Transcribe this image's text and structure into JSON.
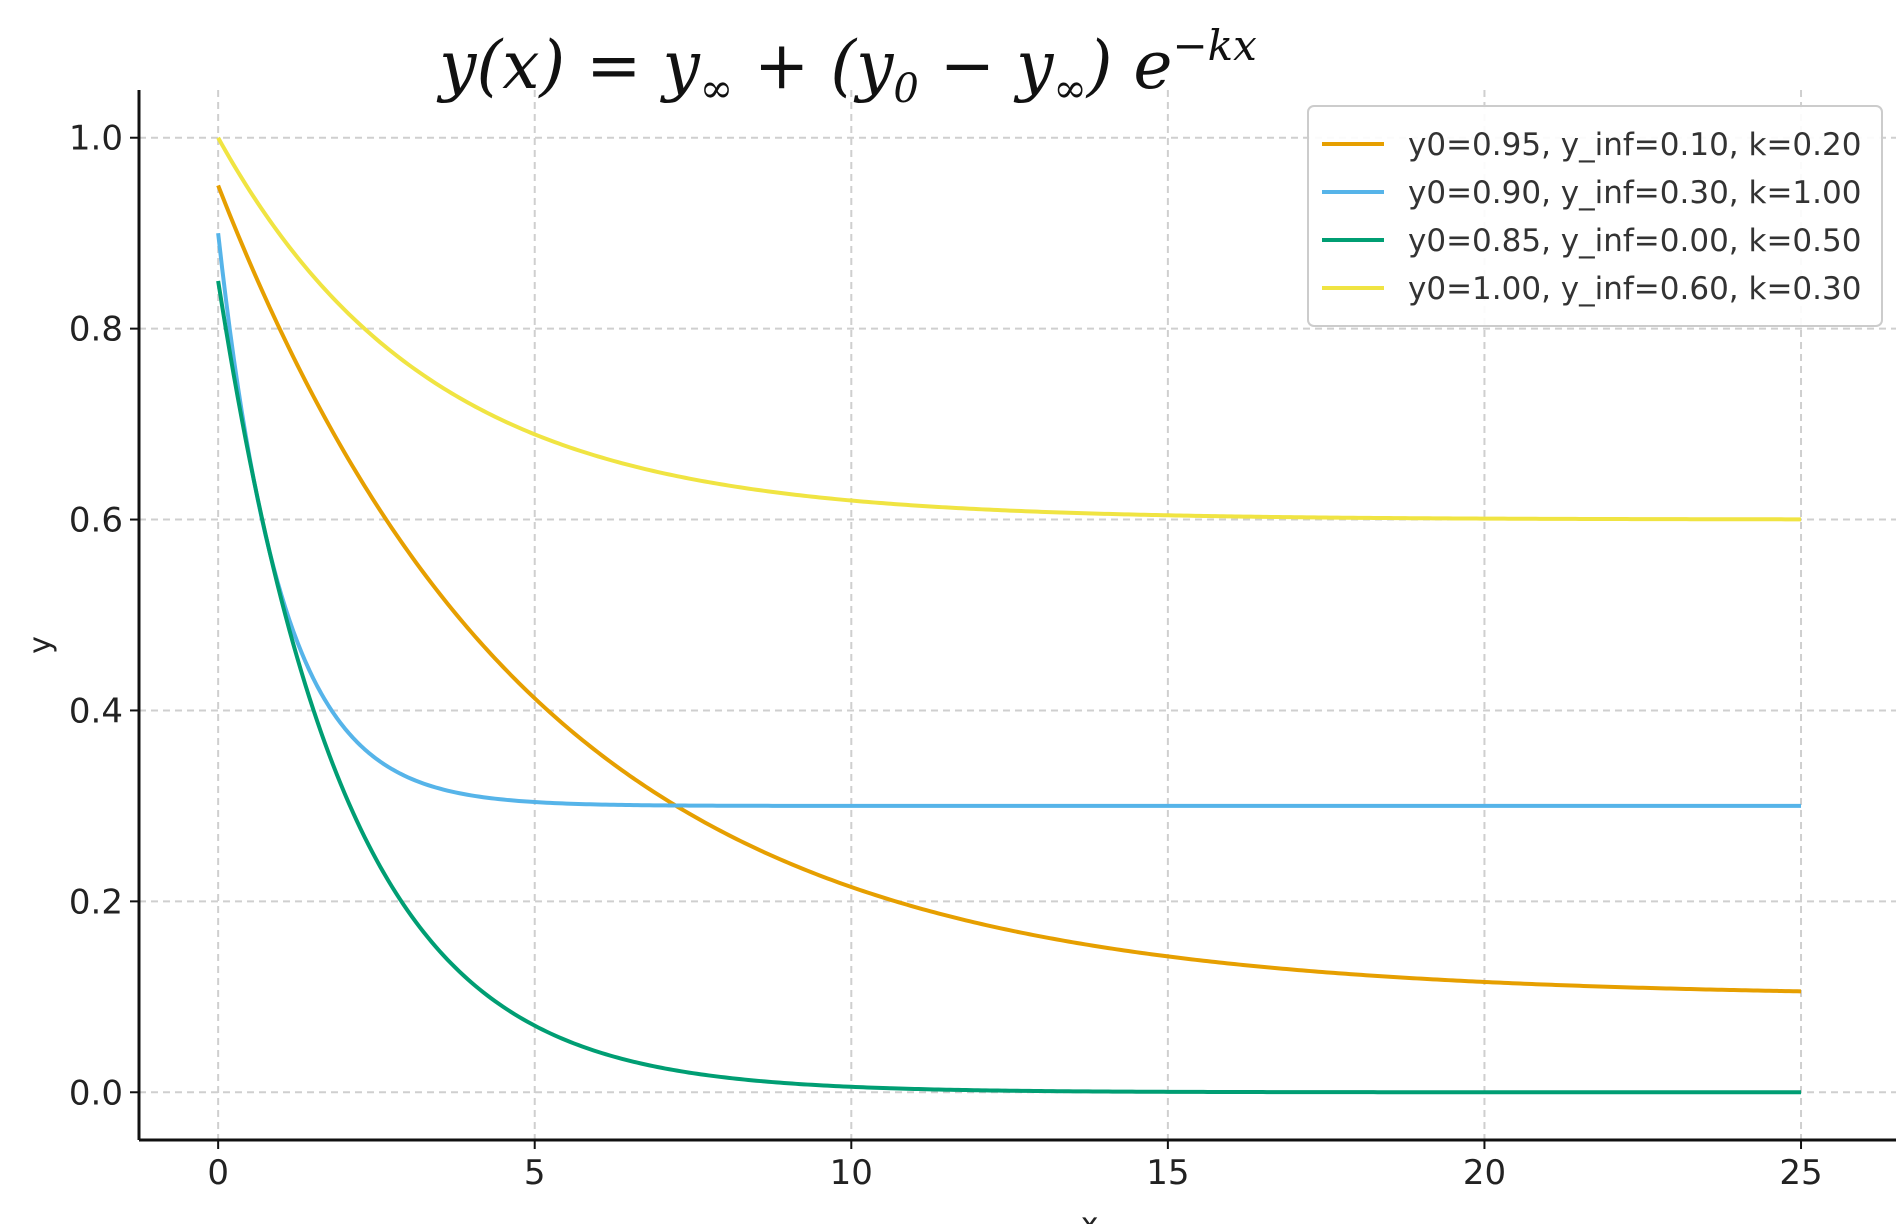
{
  "chart_data": {
    "type": "line",
    "title": "y(x) = y∞ + (y0 − y∞) e^−kx",
    "title_parts": {
      "lhs": "y(x) = y",
      "sub_inf": "∞",
      "mid": " + (y",
      "sub_0": "0",
      "minus": " − y",
      "sub_inf2": "∞",
      "rhs": ") e",
      "exp": "−kx"
    },
    "xlabel": "x",
    "ylabel": "y",
    "xlim": [
      -1.25,
      26.5
    ],
    "ylim": [
      -0.05,
      1.05
    ],
    "xticks": [
      0,
      5,
      10,
      15,
      20,
      25
    ],
    "xtick_labels": [
      "0",
      "5",
      "10",
      "15",
      "20",
      "25"
    ],
    "yticks": [
      0.0,
      0.2,
      0.4,
      0.6,
      0.8,
      1.0
    ],
    "ytick_labels": [
      "0.0",
      "0.2",
      "0.4",
      "0.6",
      "0.8",
      "1.0"
    ],
    "grid": true,
    "legend_position": "top-right",
    "x_range": [
      0,
      25
    ],
    "series": [
      {
        "name": "y0=0.95, y_inf=0.10, k=0.20",
        "y0": 0.95,
        "y_inf": 0.1,
        "k": 0.2,
        "color": "#E69F00"
      },
      {
        "name": "y0=0.90, y_inf=0.30, k=1.00",
        "y0": 0.9,
        "y_inf": 0.3,
        "k": 1.0,
        "color": "#56B4E9"
      },
      {
        "name": "y0=0.85, y_inf=0.00, k=0.50",
        "y0": 0.85,
        "y_inf": 0.0,
        "k": 0.5,
        "color": "#009E73"
      },
      {
        "name": "y0=1.00, y_inf=0.60, k=0.30",
        "y0": 1.0,
        "y_inf": 0.6,
        "k": 0.3,
        "color": "#F0E442"
      }
    ]
  }
}
